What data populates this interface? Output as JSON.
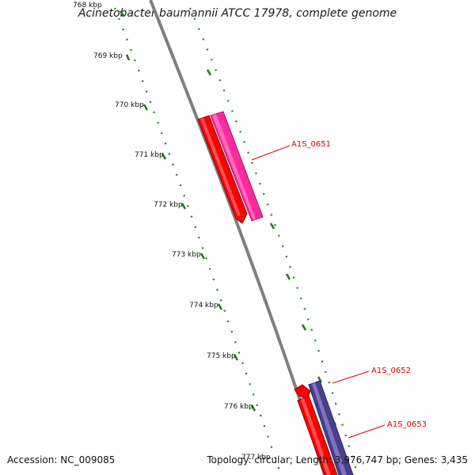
{
  "title": "Acinetobacter baumannii ATCC 17978, complete genome",
  "accession": "Accession: NC_009085",
  "topology": "Topology: circular; Length: 3,976,747 bp; Genes: 3,435",
  "ticks": [
    "768 kbp",
    "769 kbp",
    "770 kbp",
    "771 kbp",
    "772 kbp",
    "773 kbp",
    "774 kbp",
    "775 kbp",
    "776 kbp",
    "777 kbp"
  ],
  "genes": [
    {
      "name": "A1S_0651",
      "color": "#ff2a9e"
    },
    {
      "name": "",
      "color": "#ff0000"
    },
    {
      "name": "A1S_0652",
      "color": "#ff0000"
    },
    {
      "name": "A1S_0653",
      "color": "#4a3f8f"
    }
  ],
  "colors": {
    "backbone": "#8a8a8a",
    "ruler": "#1f7a1f",
    "label": "#e00000"
  }
}
